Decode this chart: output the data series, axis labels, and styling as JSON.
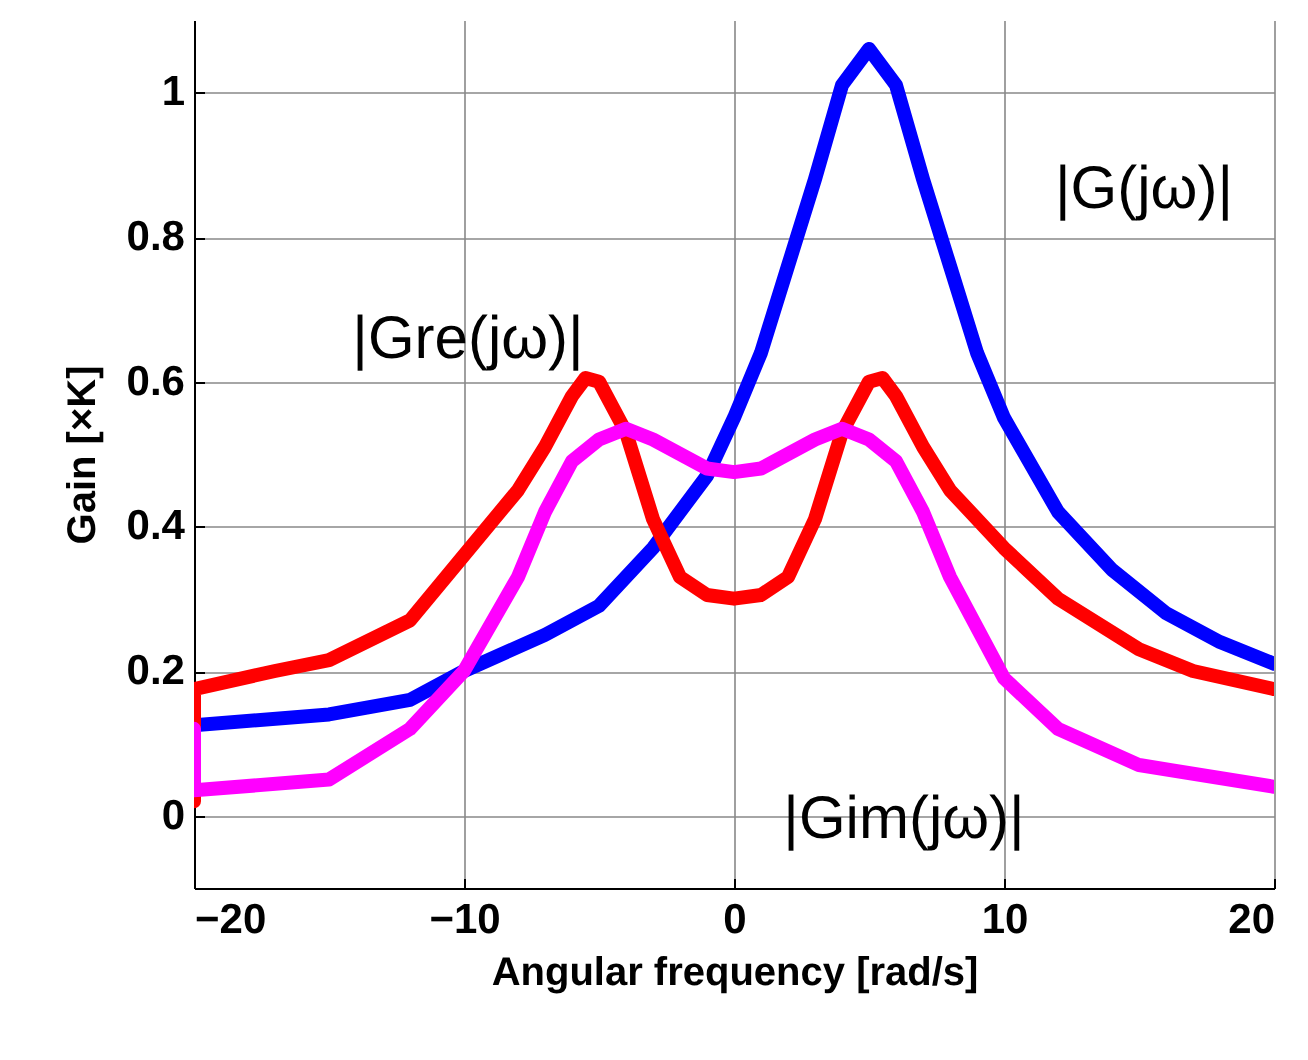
{
  "chart_data": {
    "type": "line",
    "xlabel": "Angular frequency [rad/s]",
    "ylabel": "Gain [×K]",
    "xlim": [
      -20,
      20
    ],
    "ylim": [
      -0.1,
      1.1
    ],
    "xticks": [
      -20,
      -10,
      0,
      10,
      20
    ],
    "yticks": [
      0,
      0.2,
      0.4,
      0.6,
      0.8,
      1
    ],
    "grid": true,
    "marker": "none",
    "line_style": "solid",
    "series": [
      {
        "name": "|G(jω)|",
        "color": "#0000ff",
        "x": [
          -20,
          -15,
          -12,
          -10,
          -7,
          -5,
          -3,
          -1,
          0,
          1,
          2,
          3,
          4,
          5,
          6,
          7,
          8,
          9,
          10,
          12,
          14,
          16,
          18,
          20
        ],
        "values": [
          0.125,
          0.14,
          0.16,
          0.2,
          0.25,
          0.29,
          0.37,
          0.47,
          0.55,
          0.64,
          0.76,
          0.88,
          1.01,
          1.06,
          1.01,
          0.88,
          0.76,
          0.64,
          0.55,
          0.42,
          0.34,
          0.28,
          0.24,
          0.21
        ]
      },
      {
        "name": "|Gre(jω)|",
        "color": "#ff0000",
        "x": [
          -20,
          -20,
          -17,
          -15,
          -12,
          -10,
          -8,
          -7,
          -6,
          -5.5,
          -5,
          -4,
          -3,
          -2,
          -1,
          0,
          1,
          2,
          3,
          4,
          5,
          5.5,
          6,
          7,
          8,
          10,
          12,
          15,
          17,
          20
        ],
        "values": [
          0.02,
          0.175,
          0.2,
          0.215,
          0.27,
          0.36,
          0.45,
          0.51,
          0.58,
          0.605,
          0.6,
          0.53,
          0.41,
          0.33,
          0.305,
          0.3,
          0.305,
          0.33,
          0.41,
          0.53,
          0.6,
          0.605,
          0.58,
          0.51,
          0.45,
          0.37,
          0.3,
          0.23,
          0.2,
          0.175
        ]
      },
      {
        "name": "|Gim(jω)|",
        "color": "#ff00ff",
        "x": [
          -20,
          -20,
          -15,
          -12,
          -10,
          -8,
          -7,
          -6,
          -5,
          -4,
          -3,
          -2,
          -1,
          0,
          1,
          2,
          3,
          4,
          5,
          6,
          7,
          8,
          10,
          12,
          15,
          20
        ],
        "values": [
          0.12,
          0.035,
          0.05,
          0.12,
          0.2,
          0.33,
          0.42,
          0.49,
          0.52,
          0.535,
          0.52,
          0.5,
          0.48,
          0.475,
          0.48,
          0.5,
          0.52,
          0.535,
          0.52,
          0.49,
          0.42,
          0.33,
          0.19,
          0.12,
          0.07,
          0.04
        ]
      }
    ]
  }
}
